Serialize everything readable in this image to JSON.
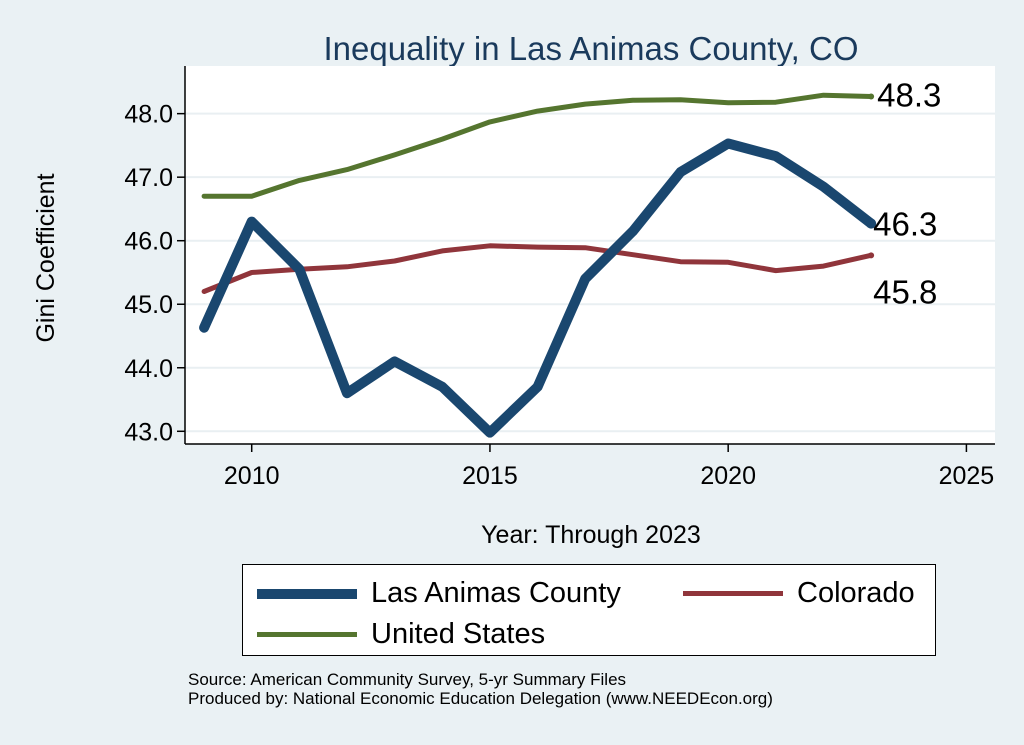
{
  "chart_data": {
    "type": "line",
    "title": "Inequality in Las Animas County, CO",
    "xlabel": "Year: Through 2023",
    "ylabel": "Gini Coefficient",
    "xlim": [
      2008.6,
      2025.6
    ],
    "ylim": [
      42.8,
      48.75
    ],
    "xticks": [
      2010,
      2015,
      2020,
      2025
    ],
    "yticks": [
      43.0,
      44.0,
      45.0,
      46.0,
      47.0,
      48.0
    ],
    "ytick_labels": [
      "43.0",
      "44.0",
      "45.0",
      "46.0",
      "47.0",
      "48.0"
    ],
    "grid": true,
    "legend_position": "bottom",
    "series": [
      {
        "name": "Las Animas County",
        "color": "#1a476f",
        "end_label": "46.3",
        "x": [
          2009,
          2010,
          2011,
          2012,
          2013,
          2014,
          2015,
          2016,
          2017,
          2018,
          2019,
          2020,
          2021,
          2022,
          2023
        ],
        "values": [
          44.63,
          46.3,
          45.55,
          43.6,
          44.1,
          43.7,
          42.98,
          43.7,
          45.4,
          46.15,
          47.08,
          47.53,
          47.33,
          46.85,
          46.27
        ]
      },
      {
        "name": "Colorado",
        "color": "#90353b",
        "end_label": "45.8",
        "x": [
          2009,
          2010,
          2011,
          2012,
          2013,
          2014,
          2015,
          2016,
          2017,
          2018,
          2019,
          2020,
          2021,
          2022,
          2023
        ],
        "values": [
          45.2,
          45.5,
          45.55,
          45.59,
          45.68,
          45.84,
          45.92,
          45.9,
          45.89,
          45.78,
          45.67,
          45.66,
          45.53,
          45.6,
          45.77
        ]
      },
      {
        "name": "United States",
        "color": "#55752f",
        "end_label": "48.3",
        "x": [
          2009,
          2010,
          2011,
          2012,
          2013,
          2014,
          2015,
          2016,
          2017,
          2018,
          2019,
          2020,
          2021,
          2022,
          2023
        ],
        "values": [
          46.7,
          46.7,
          46.95,
          47.12,
          47.35,
          47.6,
          47.87,
          48.04,
          48.15,
          48.21,
          48.22,
          48.17,
          48.18,
          48.29,
          48.27
        ]
      }
    ]
  },
  "footer": {
    "source": "Source: American Community Survey, 5-yr Summary Files",
    "produced_by": "Produced by: National Economic Education Delegation (www.NEEDEcon.org)"
  }
}
